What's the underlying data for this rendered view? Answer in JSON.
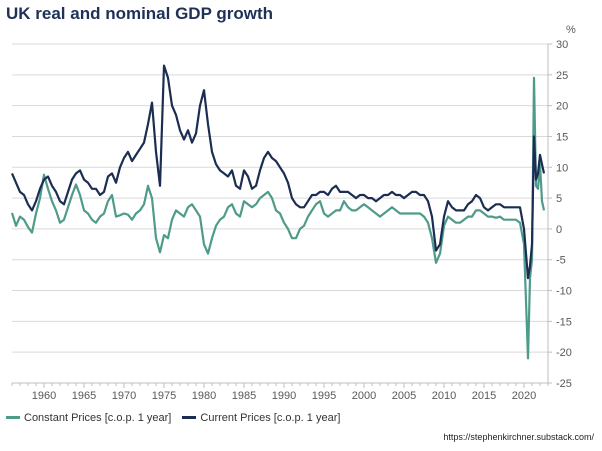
{
  "chart_data": {
    "type": "line",
    "title": "UK real and nominal GDP growth",
    "ylabel": "%",
    "ylim": [
      -25,
      30
    ],
    "xlim": [
      1956,
      2023
    ],
    "y_ticks": [
      -25,
      -20,
      -15,
      -10,
      -5,
      0,
      5,
      10,
      15,
      20,
      25,
      30
    ],
    "x_ticks": [
      1960,
      1965,
      1970,
      1975,
      1980,
      1985,
      1990,
      1995,
      2000,
      2005,
      2010,
      2015,
      2020
    ],
    "grid": true,
    "legend": "bottom-left",
    "source": "https://stephenkirchner.substack.com/",
    "series": [
      {
        "name": "Constant Prices [c.o.p. 1 year]",
        "color": "#4e9b8a",
        "points": [
          [
            1956.0,
            2.6
          ],
          [
            1956.5,
            0.5
          ],
          [
            1957.0,
            2.0
          ],
          [
            1957.5,
            1.5
          ],
          [
            1958.0,
            0.3
          ],
          [
            1958.5,
            -0.6
          ],
          [
            1959.0,
            2.5
          ],
          [
            1959.5,
            5.0
          ],
          [
            1960.0,
            8.8
          ],
          [
            1960.5,
            6.5
          ],
          [
            1961.0,
            4.5
          ],
          [
            1961.5,
            3.0
          ],
          [
            1962.0,
            1.0
          ],
          [
            1962.5,
            1.5
          ],
          [
            1963.0,
            3.5
          ],
          [
            1963.5,
            5.5
          ],
          [
            1964.0,
            7.2
          ],
          [
            1964.5,
            5.5
          ],
          [
            1965.0,
            3.0
          ],
          [
            1965.5,
            2.5
          ],
          [
            1966.0,
            1.5
          ],
          [
            1966.5,
            1.0
          ],
          [
            1967.0,
            2.0
          ],
          [
            1967.5,
            2.5
          ],
          [
            1968.0,
            4.5
          ],
          [
            1968.5,
            5.5
          ],
          [
            1969.0,
            2.0
          ],
          [
            1969.5,
            2.2
          ],
          [
            1970.0,
            2.5
          ],
          [
            1970.5,
            2.3
          ],
          [
            1971.0,
            1.5
          ],
          [
            1971.5,
            2.5
          ],
          [
            1972.0,
            3.0
          ],
          [
            1972.5,
            4.0
          ],
          [
            1973.0,
            7.0
          ],
          [
            1973.5,
            5.0
          ],
          [
            1974.0,
            -1.5
          ],
          [
            1974.5,
            -3.8
          ],
          [
            1975.0,
            -1.0
          ],
          [
            1975.5,
            -1.5
          ],
          [
            1976.0,
            1.5
          ],
          [
            1976.5,
            3.0
          ],
          [
            1977.0,
            2.5
          ],
          [
            1977.5,
            2.0
          ],
          [
            1978.0,
            3.5
          ],
          [
            1978.5,
            4.0
          ],
          [
            1979.0,
            3.0
          ],
          [
            1979.5,
            2.0
          ],
          [
            1980.0,
            -2.5
          ],
          [
            1980.5,
            -4.0
          ],
          [
            1981.0,
            -1.5
          ],
          [
            1981.5,
            0.5
          ],
          [
            1982.0,
            1.5
          ],
          [
            1982.5,
            2.0
          ],
          [
            1983.0,
            3.5
          ],
          [
            1983.5,
            4.0
          ],
          [
            1984.0,
            2.5
          ],
          [
            1984.5,
            2.0
          ],
          [
            1985.0,
            4.5
          ],
          [
            1985.5,
            4.0
          ],
          [
            1986.0,
            3.5
          ],
          [
            1986.5,
            4.0
          ],
          [
            1987.0,
            5.0
          ],
          [
            1987.5,
            5.5
          ],
          [
            1988.0,
            6.0
          ],
          [
            1988.5,
            5.0
          ],
          [
            1989.0,
            3.0
          ],
          [
            1989.5,
            2.5
          ],
          [
            1990.0,
            1.0
          ],
          [
            1990.5,
            0.0
          ],
          [
            1991.0,
            -1.5
          ],
          [
            1991.5,
            -1.5
          ],
          [
            1992.0,
            0.0
          ],
          [
            1992.5,
            0.5
          ],
          [
            1993.0,
            2.0
          ],
          [
            1993.5,
            3.0
          ],
          [
            1994.0,
            4.0
          ],
          [
            1994.5,
            4.5
          ],
          [
            1995.0,
            2.5
          ],
          [
            1995.5,
            2.0
          ],
          [
            1996.0,
            2.5
          ],
          [
            1996.5,
            3.0
          ],
          [
            1997.0,
            3.0
          ],
          [
            1997.5,
            4.5
          ],
          [
            1998.0,
            3.5
          ],
          [
            1998.5,
            3.0
          ],
          [
            1999.0,
            3.0
          ],
          [
            1999.5,
            3.5
          ],
          [
            2000.0,
            4.0
          ],
          [
            2000.5,
            3.5
          ],
          [
            2001.0,
            3.0
          ],
          [
            2001.5,
            2.5
          ],
          [
            2002.0,
            2.0
          ],
          [
            2002.5,
            2.5
          ],
          [
            2003.0,
            3.0
          ],
          [
            2003.5,
            3.5
          ],
          [
            2004.0,
            3.0
          ],
          [
            2004.5,
            2.5
          ],
          [
            2005.0,
            2.5
          ],
          [
            2005.5,
            2.5
          ],
          [
            2006.0,
            2.5
          ],
          [
            2006.5,
            2.5
          ],
          [
            2007.0,
            2.5
          ],
          [
            2007.5,
            2.0
          ],
          [
            2008.0,
            1.0
          ],
          [
            2008.5,
            -1.5
          ],
          [
            2009.0,
            -5.5
          ],
          [
            2009.5,
            -4.0
          ],
          [
            2010.0,
            0.5
          ],
          [
            2010.5,
            2.0
          ],
          [
            2011.0,
            1.5
          ],
          [
            2011.5,
            1.0
          ],
          [
            2012.0,
            1.0
          ],
          [
            2012.5,
            1.5
          ],
          [
            2013.0,
            2.0
          ],
          [
            2013.5,
            2.0
          ],
          [
            2014.0,
            3.0
          ],
          [
            2014.5,
            3.0
          ],
          [
            2015.0,
            2.5
          ],
          [
            2015.5,
            2.0
          ],
          [
            2016.0,
            2.0
          ],
          [
            2016.5,
            1.8
          ],
          [
            2017.0,
            2.0
          ],
          [
            2017.5,
            1.5
          ],
          [
            2018.0,
            1.5
          ],
          [
            2018.5,
            1.5
          ],
          [
            2019.0,
            1.5
          ],
          [
            2019.5,
            1.0
          ],
          [
            2020.0,
            -2.5
          ],
          [
            2020.5,
            -21.0
          ],
          [
            2020.75,
            -8.0
          ],
          [
            2021.0,
            -5.0
          ],
          [
            2021.25,
            24.5
          ],
          [
            2021.5,
            7.0
          ],
          [
            2021.75,
            6.5
          ],
          [
            2022.0,
            10.5
          ],
          [
            2022.25,
            4.5
          ],
          [
            2022.5,
            3.0
          ]
        ]
      },
      {
        "name": "Current Prices [c.o.p. 1 year]",
        "color": "#1b2d52",
        "points": [
          [
            1956.0,
            9.0
          ],
          [
            1956.5,
            7.5
          ],
          [
            1957.0,
            6.0
          ],
          [
            1957.5,
            5.5
          ],
          [
            1958.0,
            4.0
          ],
          [
            1958.5,
            3.0
          ],
          [
            1959.0,
            4.5
          ],
          [
            1959.5,
            6.5
          ],
          [
            1960.0,
            8.0
          ],
          [
            1960.5,
            8.5
          ],
          [
            1961.0,
            7.0
          ],
          [
            1961.5,
            6.0
          ],
          [
            1962.0,
            4.5
          ],
          [
            1962.5,
            4.0
          ],
          [
            1963.0,
            6.0
          ],
          [
            1963.5,
            8.0
          ],
          [
            1964.0,
            9.0
          ],
          [
            1964.5,
            9.5
          ],
          [
            1965.0,
            8.0
          ],
          [
            1965.5,
            7.5
          ],
          [
            1966.0,
            6.5
          ],
          [
            1966.5,
            6.5
          ],
          [
            1967.0,
            5.5
          ],
          [
            1967.5,
            6.0
          ],
          [
            1968.0,
            8.5
          ],
          [
            1968.5,
            9.0
          ],
          [
            1969.0,
            7.5
          ],
          [
            1969.5,
            10.0
          ],
          [
            1970.0,
            11.5
          ],
          [
            1970.5,
            12.5
          ],
          [
            1971.0,
            11.0
          ],
          [
            1971.5,
            12.0
          ],
          [
            1972.0,
            13.0
          ],
          [
            1972.5,
            14.0
          ],
          [
            1973.0,
            17.0
          ],
          [
            1973.5,
            20.5
          ],
          [
            1974.0,
            12.5
          ],
          [
            1974.5,
            7.0
          ],
          [
            1975.0,
            26.5
          ],
          [
            1975.5,
            24.5
          ],
          [
            1976.0,
            20.0
          ],
          [
            1976.5,
            18.5
          ],
          [
            1977.0,
            16.0
          ],
          [
            1977.5,
            14.5
          ],
          [
            1978.0,
            16.0
          ],
          [
            1978.5,
            14.0
          ],
          [
            1979.0,
            15.5
          ],
          [
            1979.5,
            20.0
          ],
          [
            1980.0,
            22.5
          ],
          [
            1980.5,
            17.0
          ],
          [
            1981.0,
            12.5
          ],
          [
            1981.5,
            10.5
          ],
          [
            1982.0,
            9.5
          ],
          [
            1982.5,
            9.0
          ],
          [
            1983.0,
            8.5
          ],
          [
            1983.5,
            9.5
          ],
          [
            1984.0,
            7.0
          ],
          [
            1984.5,
            6.5
          ],
          [
            1985.0,
            9.5
          ],
          [
            1985.5,
            8.5
          ],
          [
            1986.0,
            6.5
          ],
          [
            1986.5,
            7.0
          ],
          [
            1987.0,
            9.5
          ],
          [
            1987.5,
            11.5
          ],
          [
            1988.0,
            12.5
          ],
          [
            1988.5,
            11.5
          ],
          [
            1989.0,
            11.0
          ],
          [
            1989.5,
            10.0
          ],
          [
            1990.0,
            9.0
          ],
          [
            1990.5,
            7.5
          ],
          [
            1991.0,
            5.0
          ],
          [
            1991.5,
            4.0
          ],
          [
            1992.0,
            3.5
          ],
          [
            1992.5,
            3.5
          ],
          [
            1993.0,
            4.5
          ],
          [
            1993.5,
            5.5
          ],
          [
            1994.0,
            5.5
          ],
          [
            1994.5,
            6.0
          ],
          [
            1995.0,
            6.0
          ],
          [
            1995.5,
            5.5
          ],
          [
            1996.0,
            6.5
          ],
          [
            1996.5,
            7.0
          ],
          [
            1997.0,
            6.0
          ],
          [
            1997.5,
            6.0
          ],
          [
            1998.0,
            6.0
          ],
          [
            1998.5,
            5.5
          ],
          [
            1999.0,
            5.0
          ],
          [
            1999.5,
            5.5
          ],
          [
            2000.0,
            5.5
          ],
          [
            2000.5,
            5.0
          ],
          [
            2001.0,
            5.0
          ],
          [
            2001.5,
            4.5
          ],
          [
            2002.0,
            5.0
          ],
          [
            2002.5,
            5.5
          ],
          [
            2003.0,
            5.5
          ],
          [
            2003.5,
            6.0
          ],
          [
            2004.0,
            5.5
          ],
          [
            2004.5,
            5.5
          ],
          [
            2005.0,
            5.0
          ],
          [
            2005.5,
            5.5
          ],
          [
            2006.0,
            6.0
          ],
          [
            2006.5,
            6.0
          ],
          [
            2007.0,
            5.5
          ],
          [
            2007.5,
            5.5
          ],
          [
            2008.0,
            4.5
          ],
          [
            2008.5,
            2.0
          ],
          [
            2009.0,
            -3.5
          ],
          [
            2009.5,
            -2.5
          ],
          [
            2010.0,
            2.0
          ],
          [
            2010.5,
            4.5
          ],
          [
            2011.0,
            3.5
          ],
          [
            2011.5,
            3.0
          ],
          [
            2012.0,
            3.0
          ],
          [
            2012.5,
            3.0
          ],
          [
            2013.0,
            4.0
          ],
          [
            2013.5,
            4.5
          ],
          [
            2014.0,
            5.5
          ],
          [
            2014.5,
            5.0
          ],
          [
            2015.0,
            3.5
          ],
          [
            2015.5,
            3.0
          ],
          [
            2016.0,
            3.5
          ],
          [
            2016.5,
            4.0
          ],
          [
            2017.0,
            4.0
          ],
          [
            2017.5,
            3.5
          ],
          [
            2018.0,
            3.5
          ],
          [
            2018.5,
            3.5
          ],
          [
            2019.0,
            3.5
          ],
          [
            2019.5,
            3.5
          ],
          [
            2020.0,
            0.0
          ],
          [
            2020.5,
            -8.0
          ],
          [
            2020.75,
            -6.0
          ],
          [
            2021.0,
            -2.5
          ],
          [
            2021.25,
            15.0
          ],
          [
            2021.5,
            8.0
          ],
          [
            2021.75,
            9.0
          ],
          [
            2022.0,
            12.0
          ],
          [
            2022.25,
            10.5
          ],
          [
            2022.5,
            9.0
          ]
        ]
      }
    ]
  }
}
